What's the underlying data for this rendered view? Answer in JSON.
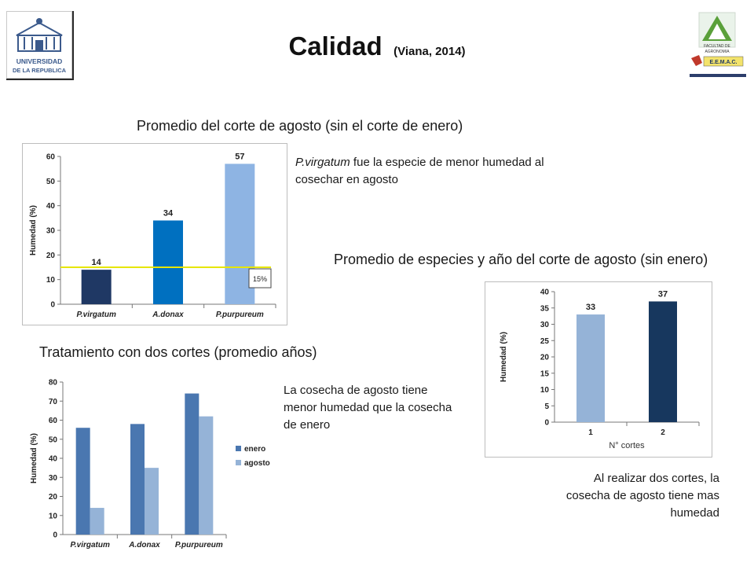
{
  "title": "Calidad",
  "subtitle": "(Viana, 2014)",
  "logos": {
    "left": {
      "line1": "UNIVERSIDAD",
      "line2": "DE LA REPUBLICA"
    },
    "right": {
      "line1": "FACULTAD DE",
      "line2": "AGRONOMIA",
      "line3": "E.E.M.A.C."
    }
  },
  "headings": {
    "chart1": "Promedio del corte de agosto (sin el corte de enero)",
    "chart2": "Promedio de especies y año del corte de agosto (sin enero)",
    "chart3": "Tratamiento con dos cortes (promedio años)"
  },
  "notes": {
    "note1_italic": "P.virgatum",
    "note1_rest": " fue la especie de menor humedad al cosechar en agosto",
    "note2": "La cosecha de agosto tiene menor humedad que la cosecha de enero",
    "note3": "Al realizar dos cortes, la cosecha de agosto tiene mas humedad"
  },
  "chart_data": [
    {
      "type": "bar",
      "categories": [
        "P.virgatum",
        "A.donax",
        "P.purpureum"
      ],
      "values": [
        14,
        34,
        57
      ],
      "colors": [
        "#1f3864",
        "#0070c0",
        "#8eb4e3"
      ],
      "ylabel": "Humedad (%)",
      "ylim": [
        0,
        60
      ],
      "yticks": [
        0,
        10,
        20,
        30,
        40,
        50,
        60
      ],
      "reference_line": {
        "value": 15,
        "label": "15%",
        "color": "#e6e600"
      },
      "grid": false
    },
    {
      "type": "bar",
      "categories": [
        "1",
        "2"
      ],
      "values": [
        33,
        37
      ],
      "colors": [
        "#95b3d7",
        "#17375e"
      ],
      "xlabel": "N° cortes",
      "ylabel": "Humedad (%)",
      "ylim": [
        0,
        40
      ],
      "yticks": [
        0,
        5,
        10,
        15,
        20,
        25,
        30,
        35,
        40
      ],
      "grid": false
    },
    {
      "type": "bar",
      "categories": [
        "P.virgatum",
        "A.donax",
        "P.purpureum"
      ],
      "series": [
        {
          "name": "enero",
          "values": [
            56,
            58,
            74
          ],
          "color": "#4a77b0"
        },
        {
          "name": "agosto",
          "values": [
            14,
            35,
            62
          ],
          "color": "#95b3d7"
        }
      ],
      "ylabel": "Humedad (%)",
      "ylim": [
        0,
        80
      ],
      "yticks": [
        0,
        10,
        20,
        30,
        40,
        50,
        60,
        70,
        80
      ],
      "legend": "right",
      "grid": false
    }
  ]
}
